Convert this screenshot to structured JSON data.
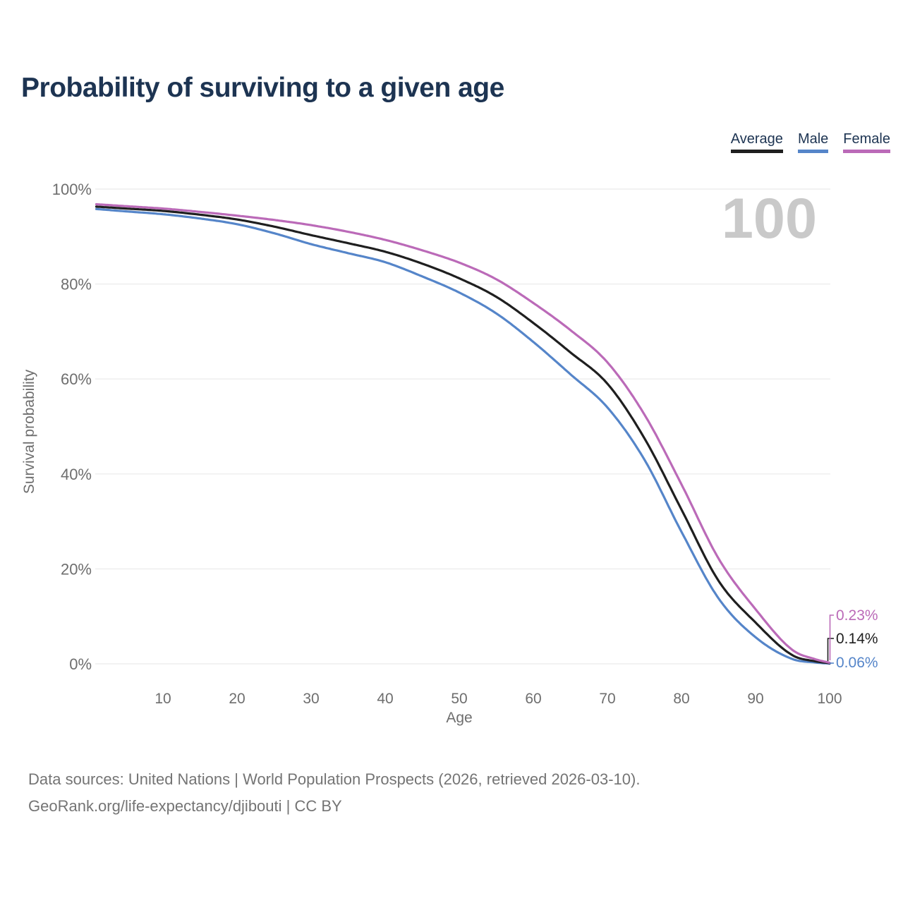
{
  "title": "Probability of surviving to a given age",
  "legend": {
    "items": [
      {
        "label": "Average",
        "color": "#1f1f1f",
        "series": "average"
      },
      {
        "label": "Male",
        "color": "#5585c9",
        "series": "male"
      },
      {
        "label": "Female",
        "color": "#bb6ab8",
        "series": "female"
      }
    ]
  },
  "chart_data": {
    "type": "line",
    "title": "Probability of surviving to a given age",
    "xlabel": "Age",
    "ylabel": "Survival probability",
    "watermark": "100",
    "xlim": [
      1,
      100
    ],
    "ylim": [
      0,
      100
    ],
    "x_ticks": [
      10,
      20,
      30,
      40,
      50,
      60,
      70,
      80,
      90,
      100
    ],
    "y_ticks": [
      0,
      20,
      40,
      60,
      80,
      100
    ],
    "y_tick_suffix": "%",
    "grid": "horizontal",
    "legend_position": "top-right",
    "colors": {
      "grid": "#ededed",
      "axis_text": "#6e6e6e"
    },
    "series": [
      {
        "name": "Male",
        "id": "male",
        "color": "#5585c9",
        "end_label": "0.06%",
        "points": [
          [
            1,
            95.8
          ],
          [
            5,
            95.3
          ],
          [
            10,
            94.7
          ],
          [
            15,
            93.8
          ],
          [
            20,
            92.6
          ],
          [
            25,
            90.7
          ],
          [
            30,
            88.4
          ],
          [
            35,
            86.5
          ],
          [
            40,
            84.6
          ],
          [
            45,
            81.6
          ],
          [
            50,
            78.2
          ],
          [
            55,
            73.8
          ],
          [
            60,
            67.8
          ],
          [
            65,
            61.0
          ],
          [
            70,
            54.0
          ],
          [
            75,
            43.0
          ],
          [
            80,
            27.8
          ],
          [
            85,
            13.8
          ],
          [
            90,
            5.6
          ],
          [
            95,
            1.0
          ],
          [
            98,
            0.3
          ],
          [
            100,
            0.06
          ]
        ]
      },
      {
        "name": "Average",
        "id": "average",
        "color": "#1f1f1f",
        "end_label": "0.14%",
        "points": [
          [
            1,
            96.3
          ],
          [
            5,
            95.9
          ],
          [
            10,
            95.4
          ],
          [
            15,
            94.6
          ],
          [
            20,
            93.6
          ],
          [
            25,
            92.1
          ],
          [
            30,
            90.3
          ],
          [
            35,
            88.6
          ],
          [
            40,
            86.8
          ],
          [
            45,
            84.3
          ],
          [
            50,
            81.2
          ],
          [
            55,
            77.3
          ],
          [
            60,
            71.8
          ],
          [
            65,
            65.6
          ],
          [
            70,
            59.0
          ],
          [
            75,
            47.5
          ],
          [
            80,
            32.5
          ],
          [
            85,
            17.5
          ],
          [
            90,
            8.7
          ],
          [
            95,
            1.8
          ],
          [
            98,
            0.55
          ],
          [
            100,
            0.14
          ]
        ]
      },
      {
        "name": "Female",
        "id": "female",
        "color": "#bb6ab8",
        "end_label": "0.23%",
        "points": [
          [
            1,
            96.8
          ],
          [
            5,
            96.4
          ],
          [
            10,
            95.9
          ],
          [
            15,
            95.2
          ],
          [
            20,
            94.4
          ],
          [
            25,
            93.5
          ],
          [
            30,
            92.4
          ],
          [
            35,
            91.0
          ],
          [
            40,
            89.3
          ],
          [
            45,
            87.1
          ],
          [
            50,
            84.5
          ],
          [
            55,
            81.0
          ],
          [
            60,
            76.0
          ],
          [
            65,
            70.3
          ],
          [
            70,
            63.5
          ],
          [
            75,
            52.5
          ],
          [
            80,
            37.8
          ],
          [
            85,
            22.2
          ],
          [
            90,
            11.5
          ],
          [
            95,
            2.9
          ],
          [
            98,
            1.0
          ],
          [
            100,
            0.23
          ]
        ]
      }
    ]
  },
  "footer": {
    "line1": "Data sources: United Nations | World Population Prospects (2026, retrieved 2026-03-10).",
    "line2": "GeoRank.org/life-expectancy/djibouti | CC BY"
  }
}
